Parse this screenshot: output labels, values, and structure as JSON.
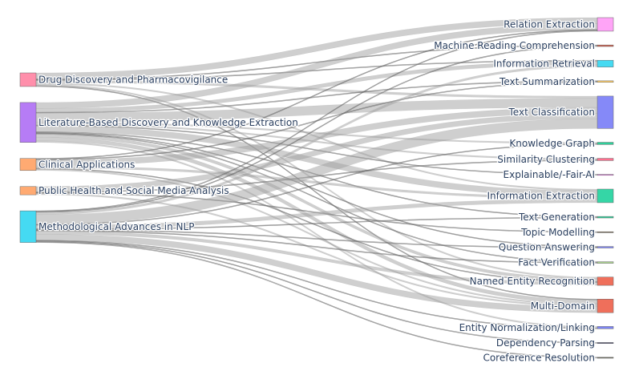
{
  "chart_data": {
    "type": "sankey",
    "link_color": "#a0a0a0",
    "sources": [
      {
        "name": "Drug Discovery and  Pharmacovigilance",
        "color": "#FF8FAB"
      },
      {
        "name": "Literature-Based Discovery and  Knowledge Extraction",
        "color": "#B67CF5"
      },
      {
        "name": "Clinical Applications",
        "color": "#FFAA72"
      },
      {
        "name": "Public Health and  Social Media Analysis",
        "color": "#FFAA72"
      },
      {
        "name": "Methodological Advances in NLP",
        "color": "#45DAF2"
      }
    ],
    "targets": [
      {
        "name": "Relation Extraction",
        "color": "#FFA4F7"
      },
      {
        "name": "Machine Reading Comprehension",
        "color": "#D0604F"
      },
      {
        "name": "Information Retrieval",
        "color": "#45DAF2"
      },
      {
        "name": "Text Summarization",
        "color": "#FFCE6A"
      },
      {
        "name": "Text Classification",
        "color": "#8589F8"
      },
      {
        "name": "Knowledge Graph",
        "color": "#2ECF9A"
      },
      {
        "name": "Similarity Clustering",
        "color": "#FF6F8F"
      },
      {
        "name": "Explainable/-Fair-AI",
        "color": "#F47FF0"
      },
      {
        "name": "Information Extraction",
        "color": "#35D6A6"
      },
      {
        "name": "Text Generation",
        "color": "#2ECF9A"
      },
      {
        "name": "Topic Modelling",
        "color": "#7F6B50"
      },
      {
        "name": "Question Answering",
        "color": "#7D84F2"
      },
      {
        "name": "Fact Verification",
        "color": "#A8D08D"
      },
      {
        "name": "Named Entity Recognition",
        "color": "#EF6F5B"
      },
      {
        "name": "Multi-Domain",
        "color": "#EF6F5B"
      },
      {
        "name": "Entity Normalization/Linking",
        "color": "#7D84F2"
      },
      {
        "name": "Dependency Parsing",
        "color": "#4A4A70"
      },
      {
        "name": "Coreference Resolution",
        "color": "#707060"
      }
    ],
    "links": [
      [
        0,
        0,
        8
      ],
      [
        0,
        1,
        1
      ],
      [
        0,
        2,
        1
      ],
      [
        0,
        4,
        3
      ],
      [
        0,
        8,
        2
      ],
      [
        0,
        13,
        2
      ],
      [
        0,
        14,
        1
      ],
      [
        1,
        0,
        8
      ],
      [
        1,
        2,
        5
      ],
      [
        1,
        3,
        1
      ],
      [
        1,
        4,
        12
      ],
      [
        1,
        5,
        2
      ],
      [
        1,
        6,
        2
      ],
      [
        1,
        7,
        1
      ],
      [
        1,
        8,
        8
      ],
      [
        1,
        9,
        1
      ],
      [
        1,
        11,
        1
      ],
      [
        1,
        12,
        1
      ],
      [
        1,
        13,
        4
      ],
      [
        1,
        14,
        5
      ],
      [
        1,
        15,
        2
      ],
      [
        2,
        0,
        1
      ],
      [
        2,
        3,
        1
      ],
      [
        2,
        4,
        8
      ],
      [
        2,
        8,
        3
      ],
      [
        2,
        13,
        1
      ],
      [
        2,
        14,
        2
      ],
      [
        3,
        4,
        7
      ],
      [
        3,
        6,
        1
      ],
      [
        3,
        10,
        1
      ],
      [
        3,
        14,
        2
      ],
      [
        4,
        0,
        1
      ],
      [
        4,
        1,
        1
      ],
      [
        4,
        2,
        3
      ],
      [
        4,
        4,
        13
      ],
      [
        4,
        5,
        1
      ],
      [
        4,
        8,
        5
      ],
      [
        4,
        9,
        1
      ],
      [
        4,
        11,
        1
      ],
      [
        4,
        12,
        1
      ],
      [
        4,
        13,
        4
      ],
      [
        4,
        14,
        8
      ],
      [
        4,
        15,
        1
      ],
      [
        4,
        16,
        1
      ],
      [
        4,
        17,
        1
      ]
    ]
  }
}
